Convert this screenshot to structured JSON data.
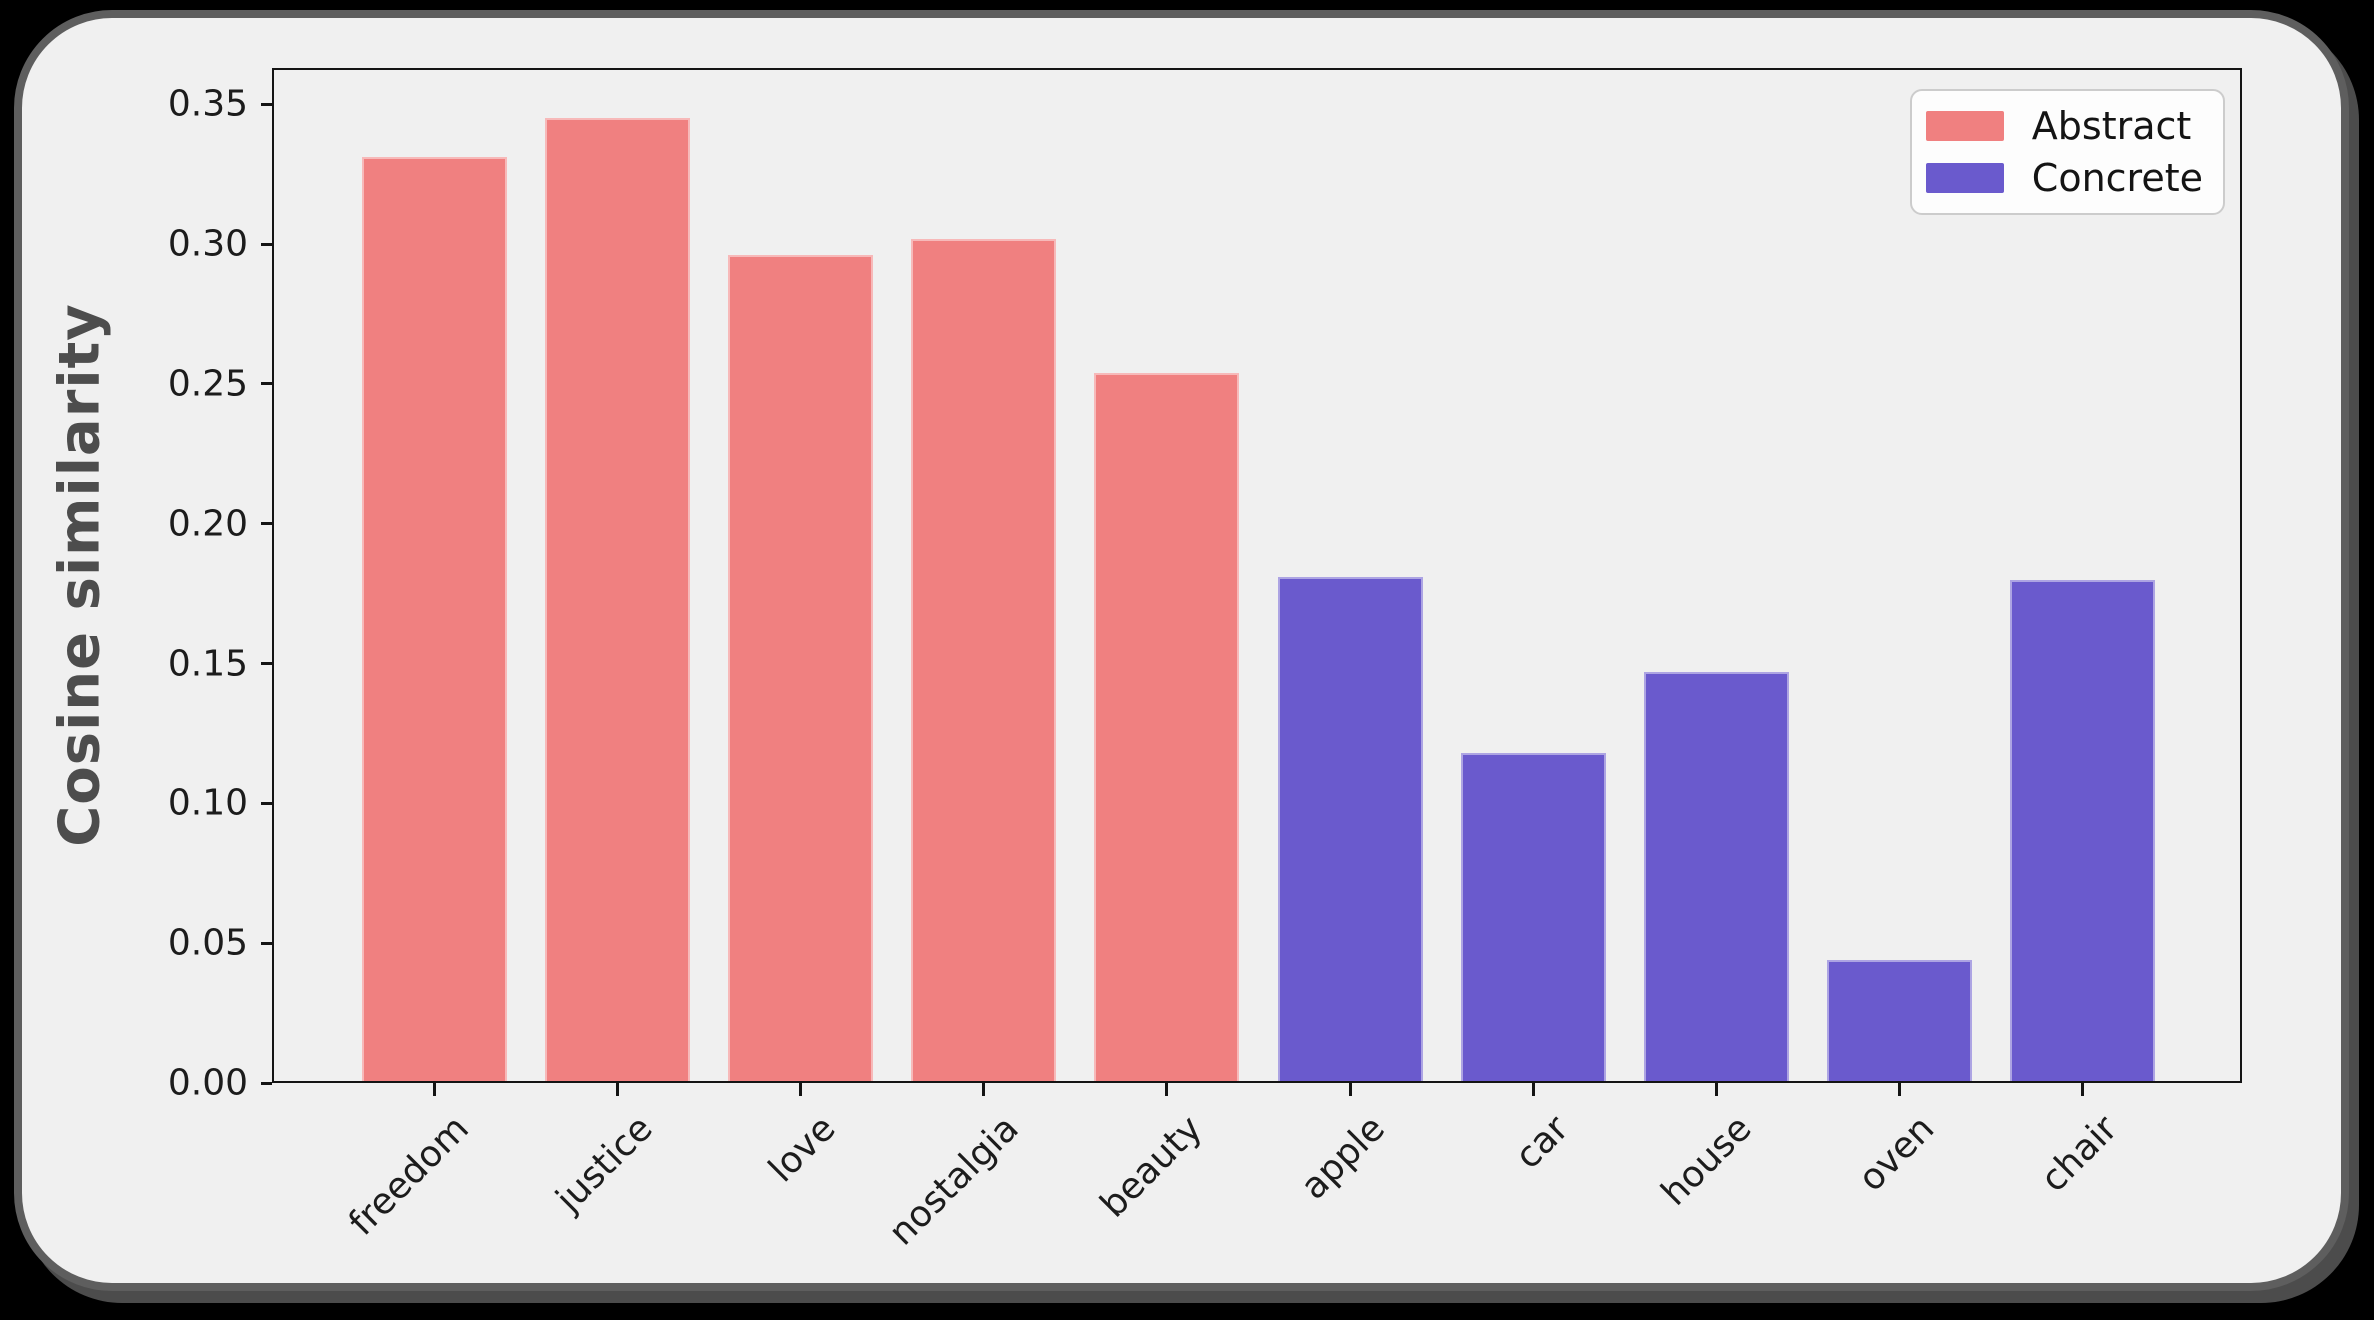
{
  "figure": {
    "page_background": "#000000",
    "card_background": "#f0f0f0",
    "card_border_color": "#5e5e5e"
  },
  "chart_data": {
    "type": "bar",
    "title": "",
    "xlabel": "",
    "ylabel": "Cosine similarity",
    "categories": [
      "freedom",
      "justice",
      "love",
      "nostalgia",
      "beauty",
      "apple",
      "car",
      "house",
      "oven",
      "chair"
    ],
    "values": [
      0.331,
      0.345,
      0.296,
      0.302,
      0.254,
      0.181,
      0.118,
      0.147,
      0.044,
      0.18
    ],
    "bar_groups": [
      "Abstract",
      "Abstract",
      "Abstract",
      "Abstract",
      "Abstract",
      "Concrete",
      "Concrete",
      "Concrete",
      "Concrete",
      "Concrete"
    ],
    "series": [
      {
        "name": "Abstract",
        "color": "#f08080",
        "categories": [
          "freedom",
          "justice",
          "love",
          "nostalgia",
          "beauty"
        ],
        "values": [
          0.331,
          0.345,
          0.296,
          0.302,
          0.254
        ]
      },
      {
        "name": "Concrete",
        "color": "#6a5acd",
        "categories": [
          "apple",
          "car",
          "house",
          "oven",
          "chair"
        ],
        "values": [
          0.181,
          0.118,
          0.147,
          0.044,
          0.18
        ]
      }
    ],
    "ylim": [
      0,
      0.363
    ],
    "yticks": [
      "0.00",
      "0.05",
      "0.10",
      "0.15",
      "0.20",
      "0.25",
      "0.30",
      "0.35"
    ],
    "xtick_rotation_deg": 45,
    "grid": false,
    "legend": {
      "position": "upper right",
      "entries": [
        {
          "label": "Abstract",
          "color": "#f08080"
        },
        {
          "label": "Concrete",
          "color": "#6a5acd"
        }
      ]
    }
  }
}
